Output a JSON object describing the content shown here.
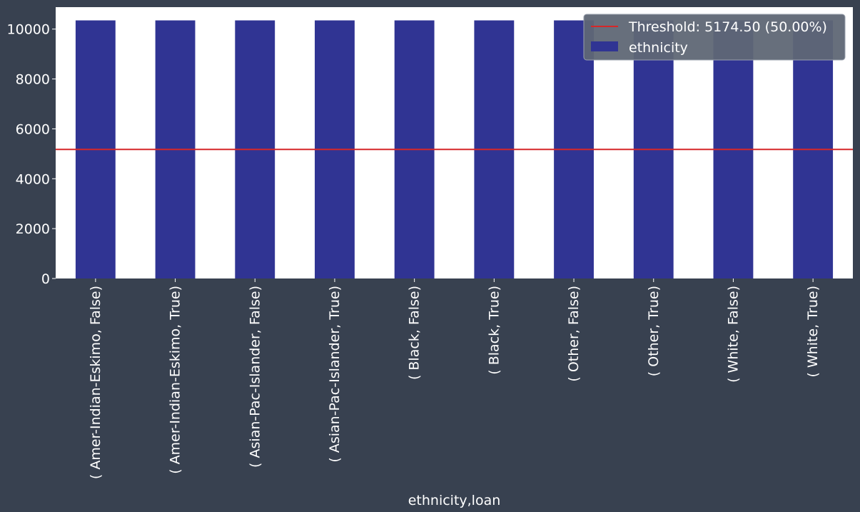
{
  "chart_data": {
    "type": "bar",
    "title": "",
    "xlabel": "ethnicity,loan",
    "ylabel": "",
    "categories": [
      "( Amer-Indian-Eskimo, False)",
      "( Amer-Indian-Eskimo, True)",
      "( Asian-Pac-Islander, False)",
      "( Asian-Pac-Islander, True)",
      "( Black, False)",
      "( Black, True)",
      "( Other, False)",
      "( Other, True)",
      "( White, False)",
      "( White, True)"
    ],
    "series": [
      {
        "name": "ethnicity",
        "values": [
          10349,
          10349,
          10349,
          10349,
          10349,
          10349,
          10349,
          10349,
          10349,
          10349
        ],
        "color": "#303493"
      }
    ],
    "threshold": {
      "value": 5174.5,
      "label": "Threshold: 5174.50 (50.00%)",
      "color": "#d62728"
    },
    "ylim": [
      0,
      10880
    ],
    "yticks": [
      0,
      2000,
      4000,
      6000,
      8000,
      10000
    ],
    "grid": false,
    "legend_position": "top-right"
  },
  "colors": {
    "figure_background": "#384150",
    "plot_background": "#ffffff",
    "text": "#ffffff",
    "legend_background": "#5f6775"
  }
}
